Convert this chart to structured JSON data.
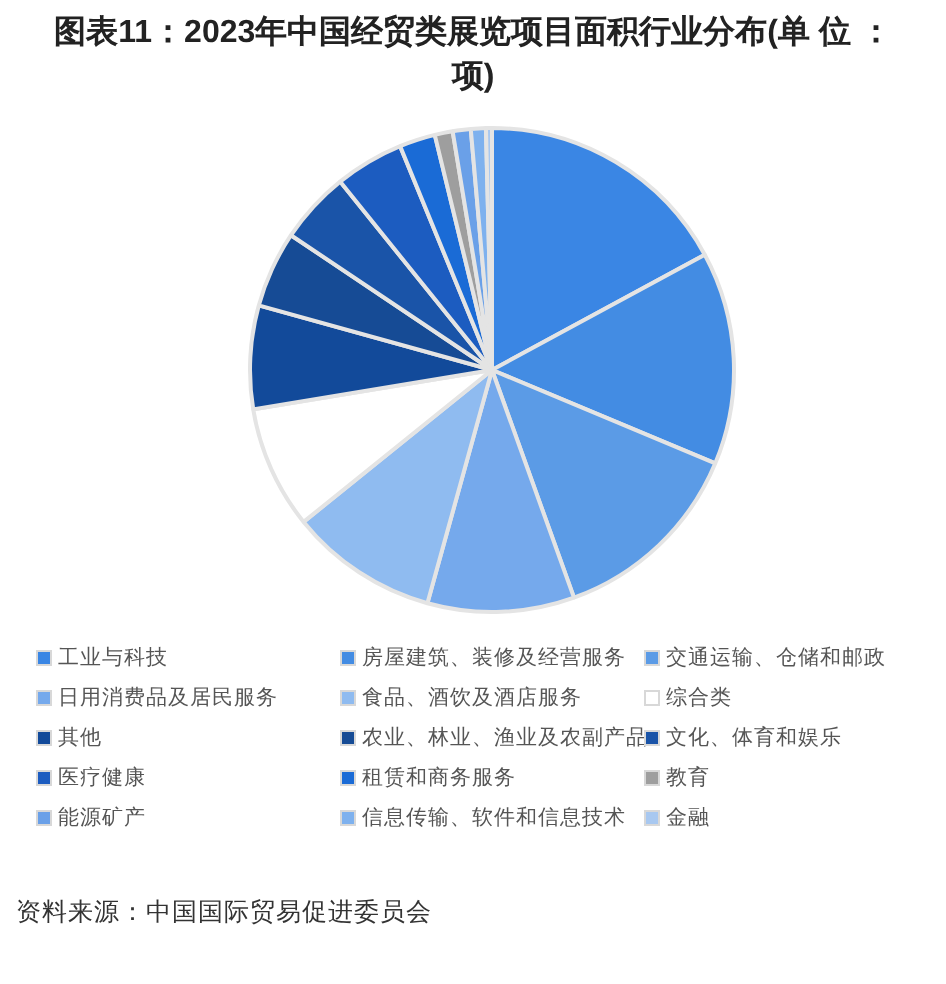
{
  "chart_data": {
    "type": "pie",
    "title": "图表11：2023年中国经贸类展览项目面积行业分布(单 位 ：项)",
    "categories": [
      "工业与科技",
      "房屋建筑、装修及经营服务",
      "交通运输、仓储和邮政",
      "日用消费品及居民服务",
      "食品、酒饮及酒店服务",
      "综合类",
      "其他",
      "农业、林业、渔业及农副产品",
      "文化、体育和娱乐",
      "医疗健康",
      "租赁和商务服务",
      "教育",
      "能源矿产",
      "信息传输、软件和信息技术",
      "金融"
    ],
    "values": [
      17.1,
      14.2,
      13.2,
      9.8,
      9.9,
      8.2,
      6.9,
      5.1,
      4.8,
      4.6,
      2.4,
      1.2,
      1.2,
      1.0,
      0.4
    ],
    "colors": [
      "#3a86e4",
      "#438ce3",
      "#5b9be6",
      "#75a9ec",
      "#8fbbf0",
      "#ffffff",
      "#124a9a",
      "#164b95",
      "#1a54a8",
      "#1c5cc0",
      "#1a6bd6",
      "#9e9e9e",
      "#6aa0e8",
      "#7eb1ee",
      "#a8c8f0"
    ],
    "legend": "bottom",
    "annotations": [
      "资料来源：中国国际贸易促进委员会"
    ]
  }
}
